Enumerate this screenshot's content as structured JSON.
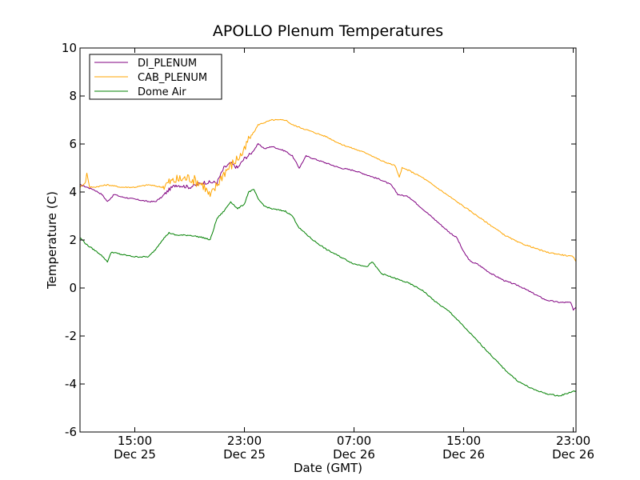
{
  "chart_data": {
    "type": "line",
    "title": "APOLLO Plenum Temperatures",
    "xlabel": "Date (GMT)",
    "ylabel": "Temperature (C)",
    "x_unit": "hours since Dec 25 00:00 GMT",
    "xlim": [
      11,
      47.2
    ],
    "ylim": [
      -6,
      10
    ],
    "grid": false,
    "legend_position": "upper-left",
    "x_ticks": [
      {
        "value": 15,
        "time": "15:00",
        "date": "Dec 25"
      },
      {
        "value": 23,
        "time": "23:00",
        "date": "Dec 25"
      },
      {
        "value": 31,
        "time": "07:00",
        "date": "Dec 26"
      },
      {
        "value": 39,
        "time": "15:00",
        "date": "Dec 26"
      },
      {
        "value": 47,
        "time": "23:00",
        "date": "Dec 26"
      }
    ],
    "y_ticks": [
      {
        "value": 10,
        "label": "10"
      },
      {
        "value": 8,
        "label": "8"
      },
      {
        "value": 6,
        "label": "6"
      },
      {
        "value": 4,
        "label": "4"
      },
      {
        "value": 2,
        "label": "2"
      },
      {
        "value": 0,
        "label": "0"
      },
      {
        "value": -2,
        "label": "-2"
      },
      {
        "value": -4,
        "label": "-4"
      },
      {
        "value": -6,
        "label": "-6"
      }
    ],
    "series": [
      {
        "name": "DI_PLENUM",
        "color": "#800080",
        "points": [
          [
            11,
            4.3
          ],
          [
            12,
            4.1
          ],
          [
            12.6,
            3.9
          ],
          [
            13,
            3.6
          ],
          [
            13.5,
            3.9
          ],
          [
            14,
            3.8
          ],
          [
            15,
            3.7
          ],
          [
            16,
            3.6
          ],
          [
            16.5,
            3.6
          ],
          [
            17,
            3.8
          ],
          [
            17.5,
            4.1
          ],
          [
            18,
            4.3
          ],
          [
            19,
            4.2
          ],
          [
            20,
            4.4
          ],
          [
            21,
            4.4
          ],
          [
            21.5,
            5.0
          ],
          [
            22,
            5.2
          ],
          [
            22.5,
            5.0
          ],
          [
            23,
            5.4
          ],
          [
            23.5,
            5.6
          ],
          [
            24,
            6.0
          ],
          [
            24.5,
            5.8
          ],
          [
            25,
            5.9
          ],
          [
            25.5,
            5.8
          ],
          [
            26,
            5.7
          ],
          [
            26.5,
            5.5
          ],
          [
            27,
            5.0
          ],
          [
            27.5,
            5.5
          ],
          [
            28,
            5.4
          ],
          [
            29,
            5.2
          ],
          [
            30,
            5.0
          ],
          [
            31,
            4.9
          ],
          [
            32,
            4.7
          ],
          [
            33,
            4.5
          ],
          [
            33.7,
            4.3
          ],
          [
            34.2,
            3.9
          ],
          [
            35,
            3.8
          ],
          [
            36,
            3.3
          ],
          [
            37,
            2.8
          ],
          [
            38,
            2.3
          ],
          [
            38.5,
            2.1
          ],
          [
            39,
            1.5
          ],
          [
            39.5,
            1.1
          ],
          [
            40,
            1.0
          ],
          [
            41,
            0.6
          ],
          [
            42,
            0.3
          ],
          [
            43,
            0.1
          ],
          [
            44,
            -0.2
          ],
          [
            45,
            -0.5
          ],
          [
            46,
            -0.6
          ],
          [
            46.8,
            -0.6
          ],
          [
            47,
            -0.9
          ],
          [
            47.2,
            -0.8
          ]
        ]
      },
      {
        "name": "CAB_PLENUM",
        "color": "#FFA500",
        "points": [
          [
            11,
            4.2
          ],
          [
            11.4,
            4.4
          ],
          [
            11.5,
            4.8
          ],
          [
            11.7,
            4.2
          ],
          [
            12,
            4.2
          ],
          [
            13,
            4.3
          ],
          [
            14,
            4.2
          ],
          [
            15,
            4.2
          ],
          [
            16,
            4.3
          ],
          [
            17,
            4.2
          ],
          [
            17.5,
            4.4
          ],
          [
            18,
            4.5
          ],
          [
            19,
            4.6
          ],
          [
            20,
            4.3
          ],
          [
            20.5,
            3.8
          ],
          [
            21,
            4.3
          ],
          [
            21.5,
            4.8
          ],
          [
            22,
            5.1
          ],
          [
            22.5,
            5.4
          ],
          [
            23,
            5.7
          ],
          [
            23.3,
            6.2
          ],
          [
            23.7,
            6.5
          ],
          [
            24,
            6.8
          ],
          [
            25,
            7.0
          ],
          [
            26,
            7.0
          ],
          [
            26.5,
            6.8
          ],
          [
            27,
            6.7
          ],
          [
            28,
            6.5
          ],
          [
            29,
            6.3
          ],
          [
            30,
            6.0
          ],
          [
            31,
            5.8
          ],
          [
            32,
            5.6
          ],
          [
            33,
            5.3
          ],
          [
            34,
            5.1
          ],
          [
            34.3,
            4.6
          ],
          [
            34.5,
            5.0
          ],
          [
            35,
            4.9
          ],
          [
            36,
            4.6
          ],
          [
            37,
            4.2
          ],
          [
            38,
            3.8
          ],
          [
            39,
            3.4
          ],
          [
            40,
            3.0
          ],
          [
            41,
            2.6
          ],
          [
            42,
            2.2
          ],
          [
            43,
            1.9
          ],
          [
            44,
            1.7
          ],
          [
            45,
            1.5
          ],
          [
            46,
            1.4
          ],
          [
            47,
            1.3
          ],
          [
            47.2,
            1.1
          ]
        ]
      },
      {
        "name": "Dome Air",
        "color": "#008000",
        "points": [
          [
            11,
            2.1
          ],
          [
            11.5,
            1.8
          ],
          [
            12,
            1.6
          ],
          [
            12.5,
            1.4
          ],
          [
            13,
            1.1
          ],
          [
            13.3,
            1.5
          ],
          [
            14,
            1.4
          ],
          [
            15,
            1.3
          ],
          [
            16,
            1.3
          ],
          [
            16.5,
            1.6
          ],
          [
            17,
            2.0
          ],
          [
            17.5,
            2.3
          ],
          [
            18,
            2.2
          ],
          [
            19,
            2.2
          ],
          [
            20,
            2.1
          ],
          [
            20.5,
            2.0
          ],
          [
            21,
            2.9
          ],
          [
            21.5,
            3.2
          ],
          [
            22,
            3.6
          ],
          [
            22.5,
            3.3
          ],
          [
            23,
            3.5
          ],
          [
            23.3,
            4.0
          ],
          [
            23.7,
            4.1
          ],
          [
            24,
            3.7
          ],
          [
            24.5,
            3.4
          ],
          [
            25,
            3.3
          ],
          [
            26,
            3.2
          ],
          [
            26.5,
            3.0
          ],
          [
            27,
            2.5
          ],
          [
            28,
            2.0
          ],
          [
            29,
            1.6
          ],
          [
            30,
            1.3
          ],
          [
            31,
            1.0
          ],
          [
            32,
            0.9
          ],
          [
            32.3,
            1.1
          ],
          [
            33,
            0.6
          ],
          [
            34,
            0.4
          ],
          [
            35,
            0.2
          ],
          [
            36,
            -0.1
          ],
          [
            37,
            -0.6
          ],
          [
            38,
            -1.0
          ],
          [
            39,
            -1.6
          ],
          [
            40,
            -2.2
          ],
          [
            41,
            -2.8
          ],
          [
            42,
            -3.4
          ],
          [
            43,
            -3.9
          ],
          [
            44,
            -4.2
          ],
          [
            45,
            -4.4
          ],
          [
            46,
            -4.5
          ],
          [
            46.5,
            -4.4
          ],
          [
            47,
            -4.3
          ],
          [
            47.2,
            -4.3
          ]
        ]
      }
    ]
  }
}
